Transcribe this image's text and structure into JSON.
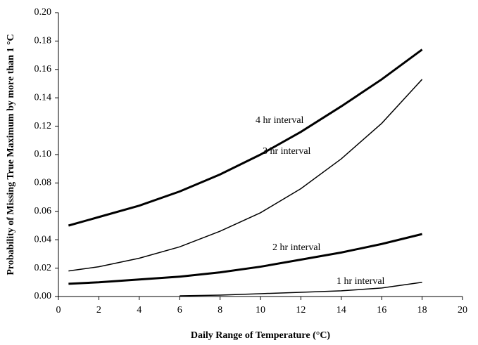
{
  "chart_data": {
    "type": "line",
    "xlabel": "Daily Range of Temperature (°C)",
    "ylabel": "Probability of Missing True Maximum by more than 1 °C",
    "x": [
      0.5,
      2,
      4,
      6,
      8,
      10,
      12,
      14,
      16,
      18
    ],
    "series": [
      {
        "name": "4 hr interval",
        "color": "#000000",
        "line_width": 3,
        "values": [
          0.05,
          0.056,
          0.064,
          0.074,
          0.086,
          0.1,
          0.116,
          0.134,
          0.153,
          0.174
        ]
      },
      {
        "name": "3 hr interval",
        "color": "#000000",
        "line_width": 1.5,
        "values": [
          0.018,
          0.021,
          0.027,
          0.035,
          0.046,
          0.059,
          0.076,
          0.097,
          0.122,
          0.153
        ]
      },
      {
        "name": "2 hr interval",
        "color": "#000000",
        "line_width": 3,
        "values": [
          0.009,
          0.01,
          0.012,
          0.014,
          0.017,
          0.021,
          0.026,
          0.031,
          0.037,
          0.044
        ]
      },
      {
        "name": "1 hr interval",
        "color": "#000000",
        "line_width": 1.5,
        "values": [
          null,
          null,
          null,
          0.0005,
          0.001,
          0.002,
          0.003,
          0.004,
          0.006,
          0.01
        ]
      }
    ],
    "xlim": [
      0,
      20
    ],
    "xticks": [
      0,
      2,
      4,
      6,
      8,
      10,
      12,
      14,
      16,
      18,
      20
    ],
    "ylim": [
      0,
      0.2
    ],
    "yticks": [
      {
        "value": 0,
        "label": "0.00"
      },
      {
        "value": 0.02,
        "label": "0.02"
      },
      {
        "value": 0.04,
        "label": "0.04"
      },
      {
        "value": 0.06,
        "label": "0.06"
      },
      {
        "value": 0.08,
        "label": "0.08"
      },
      {
        "value": 0.1,
        "label": "0.10"
      },
      {
        "value": 0.12,
        "label": "0.12"
      },
      {
        "value": 0.14,
        "label": "0.14"
      },
      {
        "value": 0.16,
        "label": "0.16"
      },
      {
        "value": 0.18,
        "label": "0.18"
      },
      {
        "value": 0.2,
        "label": "0.20"
      }
    ],
    "grid": false
  }
}
